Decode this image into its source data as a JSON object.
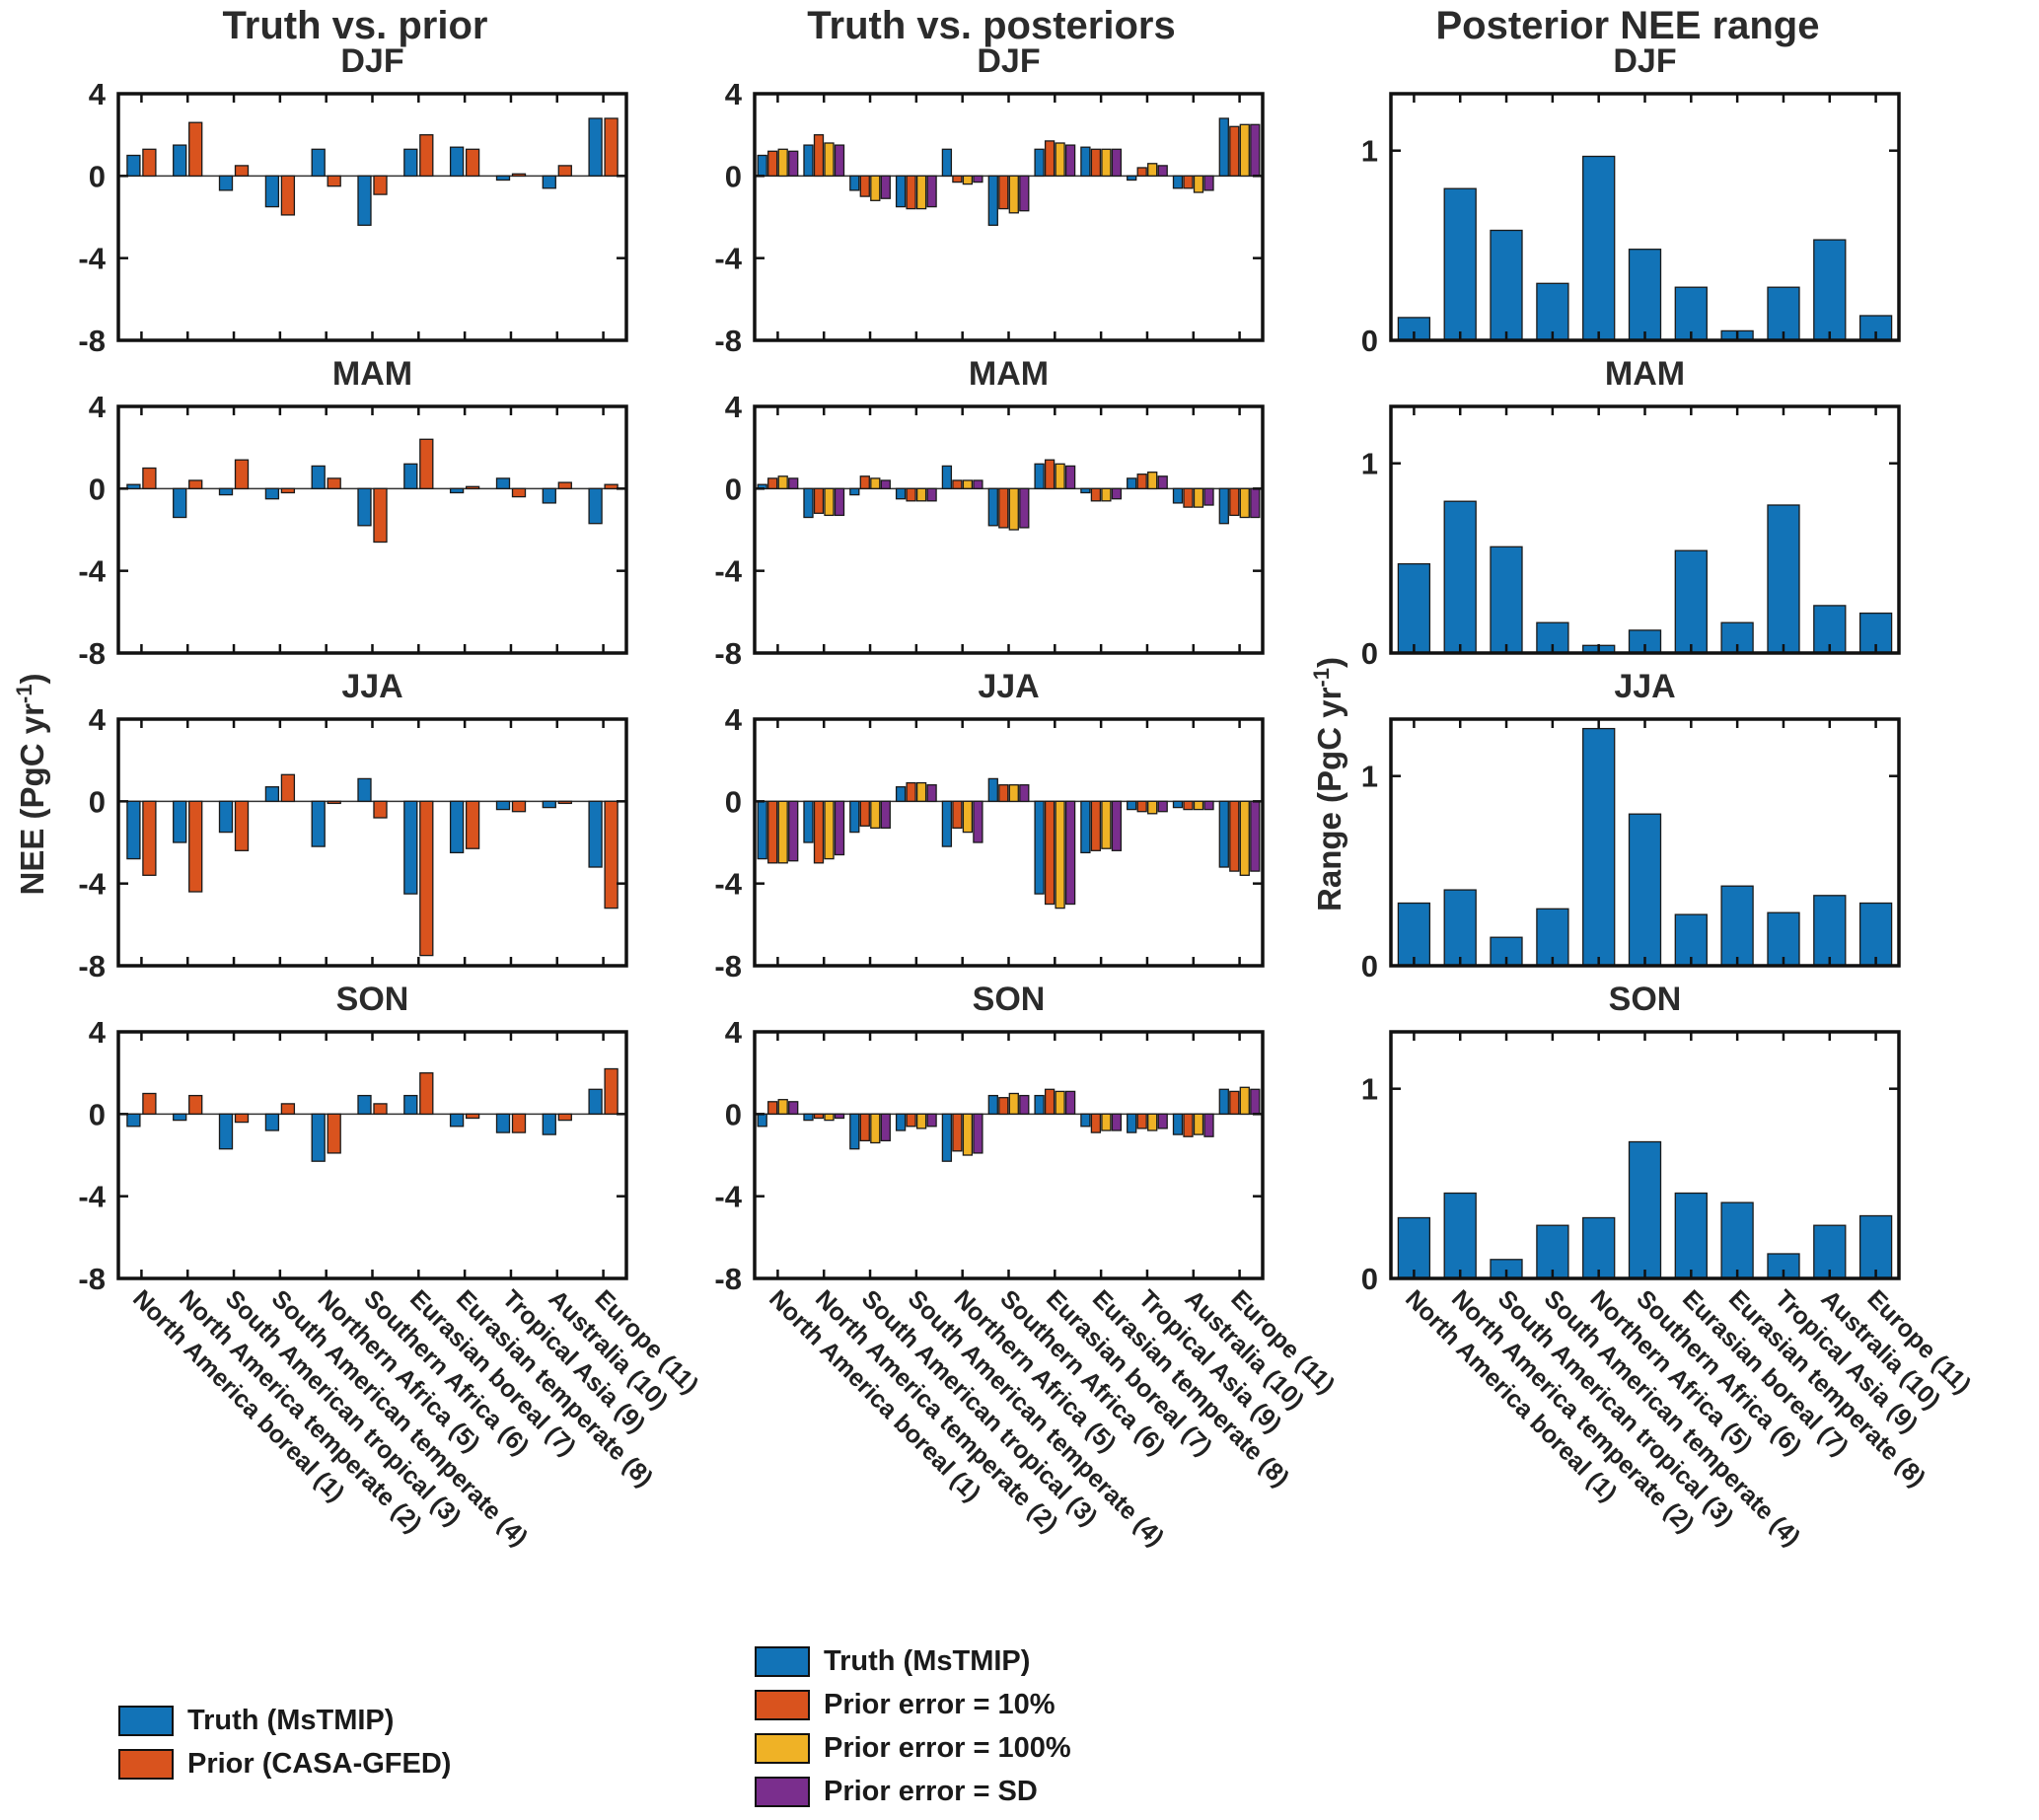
{
  "figure": {
    "column_titles": [
      "Truth vs. prior",
      "Truth vs. posteriors",
      "Posterior NEE range"
    ],
    "row_titles": [
      "DJF",
      "MAM",
      "JJA",
      "SON"
    ]
  },
  "axis": {
    "left": {
      "pre": "NEE (PgC yr",
      "sup": "-1",
      "post": ")"
    },
    "right": {
      "pre": "Range (PgC yr",
      "sup": "-1",
      "post": ")"
    }
  },
  "colors": {
    "blue": "#1273B7",
    "orange": "#D9531E",
    "yellow": "#EFB226",
    "purple": "#7A2E8D"
  },
  "categories": [
    "North America boreal (1)",
    "North America temperate (2)",
    "South American tropical (3)",
    "South American temperate (4)",
    "Northern Africa (5)",
    "Southern Africa (6)",
    "Eurasian boreal (7)",
    "Eurasian temperate (8)",
    "Tropical Asia (9)",
    "Australia (10)",
    "Europe (11)"
  ],
  "legends": {
    "left": [
      {
        "label": "Truth (MsTMIP)",
        "color": "blue"
      },
      {
        "label": "Prior (CASA-GFED)",
        "color": "orange"
      }
    ],
    "middle": [
      {
        "label": "Truth (MsTMIP)",
        "color": "blue"
      },
      {
        "label": "Prior error = 10%",
        "color": "orange"
      },
      {
        "label": "Prior error = 100%",
        "color": "yellow"
      },
      {
        "label": "Prior error = SD",
        "color": "purple"
      }
    ]
  },
  "chart_data": [
    {
      "id": "djf-truth-vs-prior",
      "type": "bar",
      "title": "DJF",
      "row": 0,
      "col": 0,
      "ylim": [
        -8,
        4
      ],
      "yticks": [
        -8,
        -4,
        0,
        4
      ],
      "series": [
        {
          "name": "Truth (MsTMIP)",
          "color": "blue",
          "values": [
            1.0,
            1.5,
            -0.7,
            -1.5,
            1.3,
            -2.4,
            1.3,
            1.4,
            -0.2,
            -0.6,
            2.8
          ]
        },
        {
          "name": "Prior (CASA-GFED)",
          "color": "orange",
          "values": [
            1.3,
            2.6,
            0.5,
            -1.9,
            -0.5,
            -0.9,
            2.0,
            1.3,
            0.1,
            0.5,
            2.8
          ]
        }
      ]
    },
    {
      "id": "djf-truth-vs-posteriors",
      "type": "bar",
      "title": "DJF",
      "row": 0,
      "col": 1,
      "ylim": [
        -8,
        4
      ],
      "yticks": [
        -8,
        -4,
        0,
        4
      ],
      "series": [
        {
          "name": "Truth (MsTMIP)",
          "color": "blue",
          "values": [
            1.0,
            1.5,
            -0.7,
            -1.5,
            1.3,
            -2.4,
            1.3,
            1.4,
            -0.2,
            -0.6,
            2.8
          ]
        },
        {
          "name": "Prior error = 10%",
          "color": "orange",
          "values": [
            1.2,
            2.0,
            -1.0,
            -1.6,
            -0.3,
            -1.6,
            1.7,
            1.3,
            0.4,
            -0.6,
            2.4
          ]
        },
        {
          "name": "Prior error = 100%",
          "color": "yellow",
          "values": [
            1.3,
            1.6,
            -1.2,
            -1.6,
            -0.4,
            -1.8,
            1.6,
            1.3,
            0.6,
            -0.8,
            2.5
          ]
        },
        {
          "name": "Prior error = SD",
          "color": "purple",
          "values": [
            1.2,
            1.5,
            -1.1,
            -1.5,
            -0.3,
            -1.7,
            1.5,
            1.3,
            0.5,
            -0.7,
            2.5
          ]
        }
      ]
    },
    {
      "id": "djf-posterior-nee-range",
      "type": "bar",
      "title": "DJF",
      "row": 0,
      "col": 2,
      "ylim": [
        0,
        1.3
      ],
      "yticks": [
        0,
        1
      ],
      "series": [
        {
          "name": "Posterior NEE range",
          "color": "blue",
          "values": [
            0.12,
            0.8,
            0.58,
            0.3,
            0.97,
            0.48,
            0.28,
            0.05,
            0.28,
            0.53,
            0.13
          ]
        }
      ]
    },
    {
      "id": "mam-truth-vs-prior",
      "type": "bar",
      "title": "MAM",
      "row": 1,
      "col": 0,
      "ylim": [
        -8,
        4
      ],
      "yticks": [
        -8,
        -4,
        0,
        4
      ],
      "series": [
        {
          "name": "Truth (MsTMIP)",
          "color": "blue",
          "values": [
            0.2,
            -1.4,
            -0.3,
            -0.5,
            1.1,
            -1.8,
            1.2,
            -0.2,
            0.5,
            -0.7,
            -1.7
          ]
        },
        {
          "name": "Prior (CASA-GFED)",
          "color": "orange",
          "values": [
            1.0,
            0.4,
            1.4,
            -0.2,
            0.5,
            -2.6,
            2.4,
            0.1,
            -0.4,
            0.3,
            0.2
          ]
        }
      ]
    },
    {
      "id": "mam-truth-vs-posteriors",
      "type": "bar",
      "title": "MAM",
      "row": 1,
      "col": 1,
      "ylim": [
        -8,
        4
      ],
      "yticks": [
        -8,
        -4,
        0,
        4
      ],
      "series": [
        {
          "name": "Truth (MsTMIP)",
          "color": "blue",
          "values": [
            0.2,
            -1.4,
            -0.3,
            -0.5,
            1.1,
            -1.8,
            1.2,
            -0.2,
            0.5,
            -0.7,
            -1.7
          ]
        },
        {
          "name": "Prior error = 10%",
          "color": "orange",
          "values": [
            0.5,
            -1.2,
            0.6,
            -0.6,
            0.4,
            -1.9,
            1.4,
            -0.6,
            0.7,
            -0.9,
            -1.3
          ]
        },
        {
          "name": "Prior error = 100%",
          "color": "yellow",
          "values": [
            0.6,
            -1.3,
            0.5,
            -0.6,
            0.4,
            -2.0,
            1.2,
            -0.6,
            0.8,
            -0.9,
            -1.4
          ]
        },
        {
          "name": "Prior error = SD",
          "color": "purple",
          "values": [
            0.5,
            -1.3,
            0.4,
            -0.6,
            0.4,
            -1.9,
            1.1,
            -0.5,
            0.6,
            -0.8,
            -1.4
          ]
        }
      ]
    },
    {
      "id": "mam-posterior-nee-range",
      "type": "bar",
      "title": "MAM",
      "row": 1,
      "col": 2,
      "ylim": [
        0,
        1.3
      ],
      "yticks": [
        0,
        1
      ],
      "series": [
        {
          "name": "Posterior NEE range",
          "color": "blue",
          "values": [
            0.47,
            0.8,
            0.56,
            0.16,
            0.04,
            0.12,
            0.54,
            0.16,
            0.78,
            0.25,
            0.21
          ]
        }
      ]
    },
    {
      "id": "jja-truth-vs-prior",
      "type": "bar",
      "title": "JJA",
      "row": 2,
      "col": 0,
      "ylim": [
        -8,
        4
      ],
      "yticks": [
        -8,
        -4,
        0,
        4
      ],
      "series": [
        {
          "name": "Truth (MsTMIP)",
          "color": "blue",
          "values": [
            -2.8,
            -2.0,
            -1.5,
            0.7,
            -2.2,
            1.1,
            -4.5,
            -2.5,
            -0.4,
            -0.3,
            -3.2
          ]
        },
        {
          "name": "Prior (CASA-GFED)",
          "color": "orange",
          "values": [
            -3.6,
            -4.4,
            -2.4,
            1.3,
            -0.1,
            -0.8,
            -7.5,
            -2.3,
            -0.5,
            -0.1,
            -5.2
          ]
        }
      ]
    },
    {
      "id": "jja-truth-vs-posteriors",
      "type": "bar",
      "title": "JJA",
      "row": 2,
      "col": 1,
      "ylim": [
        -8,
        4
      ],
      "yticks": [
        -8,
        -4,
        0,
        4
      ],
      "series": [
        {
          "name": "Truth (MsTMIP)",
          "color": "blue",
          "values": [
            -2.8,
            -2.0,
            -1.5,
            0.7,
            -2.2,
            1.1,
            -4.5,
            -2.5,
            -0.4,
            -0.3,
            -3.2
          ]
        },
        {
          "name": "Prior error = 10%",
          "color": "orange",
          "values": [
            -3.0,
            -3.0,
            -1.2,
            0.9,
            -1.3,
            0.8,
            -5.0,
            -2.4,
            -0.5,
            -0.4,
            -3.4
          ]
        },
        {
          "name": "Prior error = 100%",
          "color": "yellow",
          "values": [
            -3.0,
            -2.8,
            -1.3,
            0.9,
            -1.5,
            0.8,
            -5.2,
            -2.3,
            -0.6,
            -0.4,
            -3.6
          ]
        },
        {
          "name": "Prior error = SD",
          "color": "purple",
          "values": [
            -2.9,
            -2.6,
            -1.3,
            0.8,
            -2.0,
            0.8,
            -5.0,
            -2.4,
            -0.5,
            -0.4,
            -3.4
          ]
        }
      ]
    },
    {
      "id": "jja-posterior-nee-range",
      "type": "bar",
      "title": "JJA",
      "row": 2,
      "col": 2,
      "ylim": [
        0,
        1.3
      ],
      "yticks": [
        0,
        1
      ],
      "series": [
        {
          "name": "Posterior NEE range",
          "color": "blue",
          "values": [
            0.33,
            0.4,
            0.15,
            0.3,
            1.25,
            0.8,
            0.27,
            0.42,
            0.28,
            0.37,
            0.33
          ]
        }
      ]
    },
    {
      "id": "son-truth-vs-prior",
      "type": "bar",
      "title": "SON",
      "row": 3,
      "col": 0,
      "ylim": [
        -8,
        4
      ],
      "yticks": [
        -8,
        -4,
        0,
        4
      ],
      "series": [
        {
          "name": "Truth (MsTMIP)",
          "color": "blue",
          "values": [
            -0.6,
            -0.3,
            -1.7,
            -0.8,
            -2.3,
            0.9,
            0.9,
            -0.6,
            -0.9,
            -1.0,
            1.2
          ]
        },
        {
          "name": "Prior (CASA-GFED)",
          "color": "orange",
          "values": [
            1.0,
            0.9,
            -0.4,
            0.5,
            -1.9,
            0.5,
            2.0,
            -0.2,
            -0.9,
            -0.3,
            2.2
          ]
        }
      ]
    },
    {
      "id": "son-truth-vs-posteriors",
      "type": "bar",
      "title": "SON",
      "row": 3,
      "col": 1,
      "ylim": [
        -8,
        4
      ],
      "yticks": [
        -8,
        -4,
        0,
        4
      ],
      "series": [
        {
          "name": "Truth (MsTMIP)",
          "color": "blue",
          "values": [
            -0.6,
            -0.3,
            -1.7,
            -0.8,
            -2.3,
            0.9,
            0.9,
            -0.6,
            -0.9,
            -1.0,
            1.2
          ]
        },
        {
          "name": "Prior error = 10%",
          "color": "orange",
          "values": [
            0.6,
            -0.2,
            -1.3,
            -0.6,
            -1.8,
            0.8,
            1.2,
            -0.9,
            -0.7,
            -1.1,
            1.1
          ]
        },
        {
          "name": "Prior error = 100%",
          "color": "yellow",
          "values": [
            0.7,
            -0.3,
            -1.4,
            -0.7,
            -2.0,
            1.0,
            1.1,
            -0.8,
            -0.8,
            -1.0,
            1.3
          ]
        },
        {
          "name": "Prior error = SD",
          "color": "purple",
          "values": [
            0.6,
            -0.2,
            -1.3,
            -0.6,
            -1.9,
            0.9,
            1.1,
            -0.8,
            -0.7,
            -1.1,
            1.2
          ]
        }
      ]
    },
    {
      "id": "son-posterior-nee-range",
      "type": "bar",
      "title": "SON",
      "row": 3,
      "col": 2,
      "ylim": [
        0,
        1.3
      ],
      "yticks": [
        0,
        1
      ],
      "series": [
        {
          "name": "Posterior NEE range",
          "color": "blue",
          "values": [
            0.32,
            0.45,
            0.1,
            0.28,
            0.32,
            0.72,
            0.45,
            0.4,
            0.13,
            0.28,
            0.33
          ]
        }
      ]
    }
  ]
}
